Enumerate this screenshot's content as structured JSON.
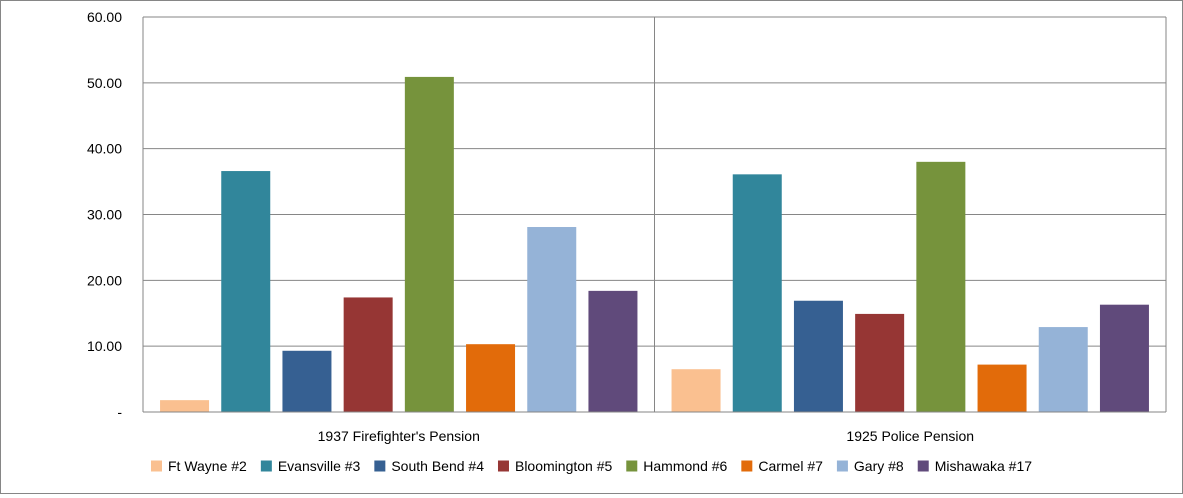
{
  "chart_data": {
    "type": "bar",
    "title": "",
    "xlabel": "",
    "ylabel": "",
    "ylim": [
      0,
      60
    ],
    "yticks": [
      0,
      10,
      20,
      30,
      40,
      50,
      60
    ],
    "ytick_labels": [
      "-",
      "10.00",
      "20.00",
      "30.00",
      "40.00",
      "50.00",
      "60.00"
    ],
    "grid": true,
    "legend_position": "bottom",
    "categories": [
      "1937 Firefighter's Pension",
      "1925 Police Pension"
    ],
    "series": [
      {
        "name": "Ft Wayne #2",
        "color": "#FAC090",
        "values": [
          1.8,
          6.5
        ]
      },
      {
        "name": "Evansville #3",
        "color": "#31869B",
        "values": [
          36.6,
          36.1
        ]
      },
      {
        "name": "South Bend #4",
        "color": "#366092",
        "values": [
          9.3,
          16.9
        ]
      },
      {
        "name": "Bloomington #5",
        "color": "#963634",
        "values": [
          17.4,
          14.9
        ]
      },
      {
        "name": "Hammond #6",
        "color": "#76933C",
        "values": [
          50.9,
          38.0
        ]
      },
      {
        "name": "Carmel #7",
        "color": "#E26B0A",
        "values": [
          10.3,
          7.2
        ]
      },
      {
        "name": "Gary #8",
        "color": "#95B3D7",
        "values": [
          28.1,
          12.9
        ]
      },
      {
        "name": "Mishawaka #17",
        "color": "#604A7B",
        "values": [
          18.4,
          16.3
        ]
      }
    ]
  }
}
